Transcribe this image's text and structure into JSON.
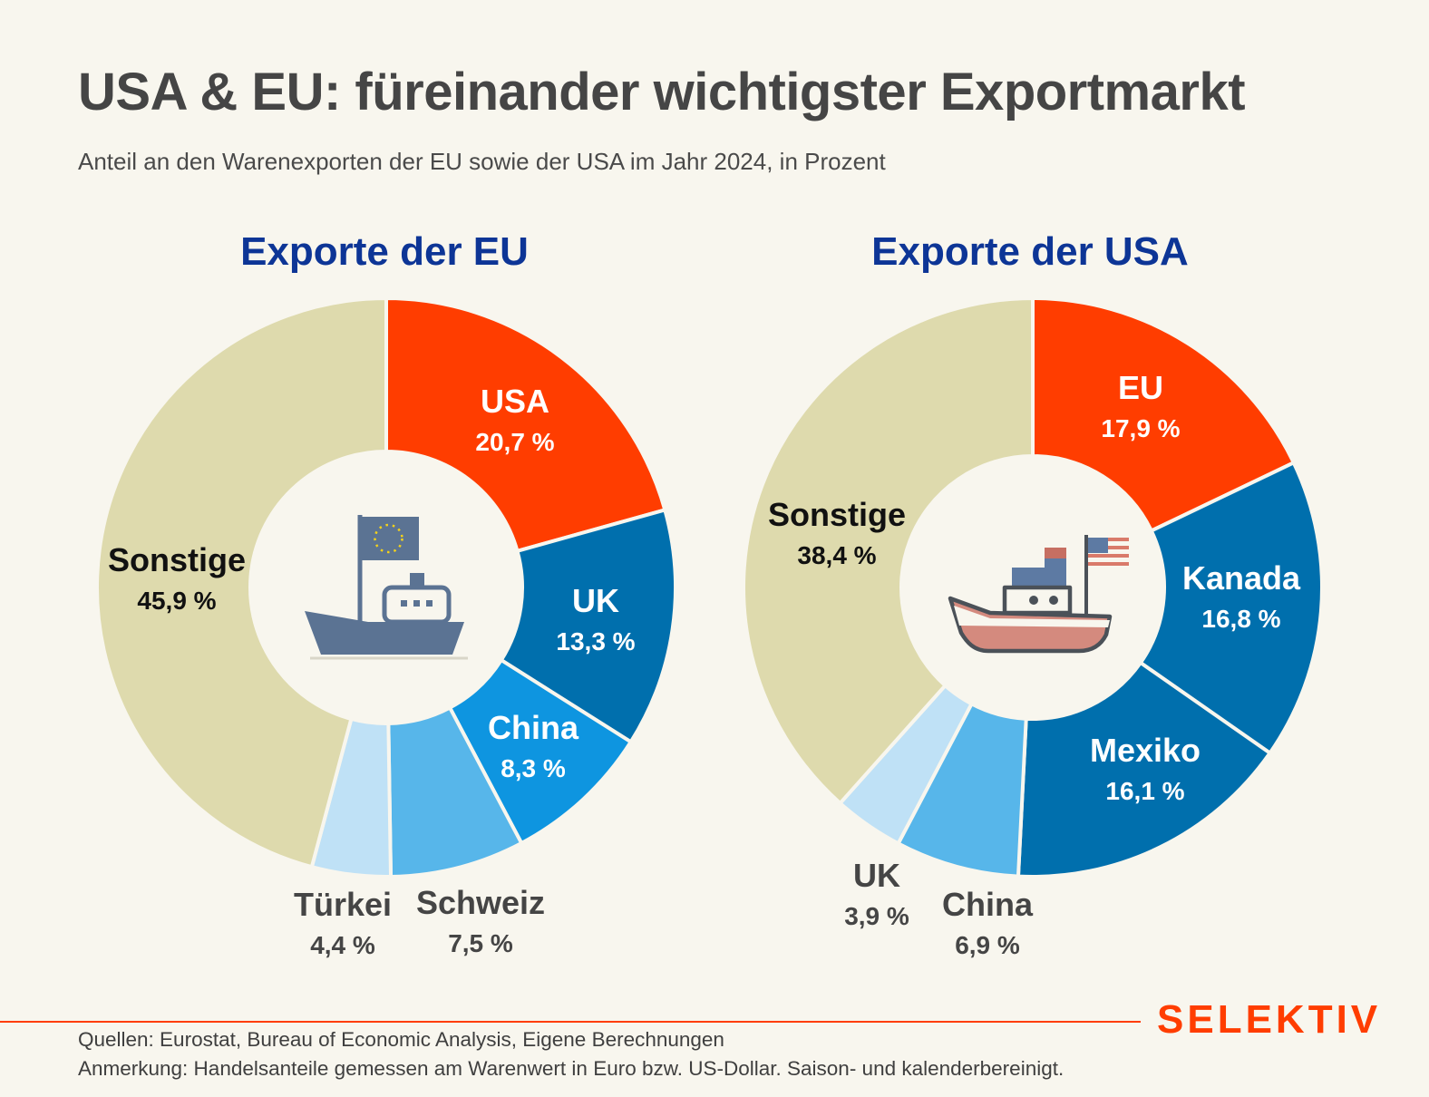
{
  "header": {
    "title": "USA & EU: füreinander wichtigster Exportmarkt",
    "subtitle": "Anteil an den Warenexporten der EU sowie der USA im Jahr 2024, in Prozent"
  },
  "chart_data": [
    {
      "type": "pie",
      "title": "Exporte der EU",
      "categories": [
        "USA",
        "UK",
        "China",
        "Schweiz",
        "Türkei",
        "Sonstige"
      ],
      "values": [
        20.7,
        13.3,
        8.3,
        7.5,
        4.4,
        45.9
      ],
      "value_labels": [
        "20,7 %",
        "13,3 %",
        "8,3 %",
        "7,5 %",
        "4,4 %",
        "45,9 %"
      ],
      "colors": [
        "#ff3d00",
        "#006fad",
        "#0e95e0",
        "#57b6ea",
        "#bfe1f6",
        "#dedaad"
      ],
      "icon": "eu-ship-icon"
    },
    {
      "type": "pie",
      "title": "Exporte der USA",
      "categories": [
        "EU",
        "Kanada",
        "Mexiko",
        "China",
        "UK",
        "Sonstige"
      ],
      "values": [
        17.9,
        16.8,
        16.1,
        6.9,
        3.9,
        38.4
      ],
      "value_labels": [
        "17,9 %",
        "16,8 %",
        "16,1 %",
        "6,9 %",
        "3,9 %",
        "38,4 %"
      ],
      "colors": [
        "#ff3d00",
        "#006fad",
        "#006fad",
        "#57b6ea",
        "#bfe1f6",
        "#dedaad"
      ],
      "icon": "us-ship-icon"
    }
  ],
  "footer": {
    "sources": "Quellen: Eurostat, Bureau of Economic Analysis, Eigene Berechnungen",
    "note": "Anmerkung: Handelsanteile gemessen am Warenwert in Euro bzw. US-Dollar. Saison- und kalenderbereinigt.",
    "brand": "SELEKTIV"
  }
}
